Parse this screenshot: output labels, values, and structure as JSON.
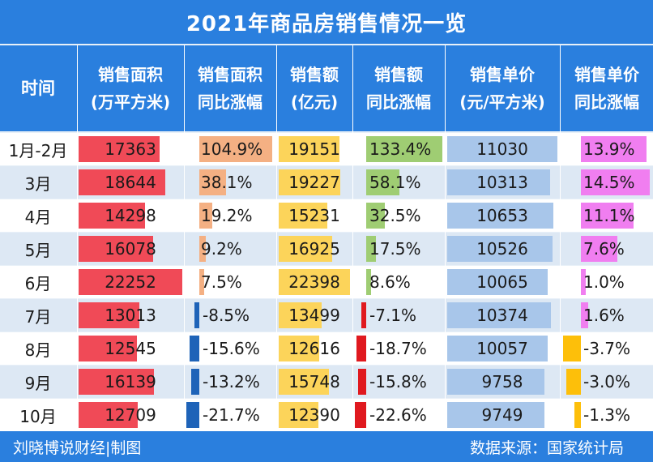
{
  "title": "2021年商品房销售情况一览",
  "headers": {
    "time": "时间",
    "area_1": "销售面积",
    "area_2": "(万平方米)",
    "area_yoy_1": "销售面积",
    "area_yoy_2": "同比涨幅",
    "amount_1": "销售额",
    "amount_2": "(亿元)",
    "amount_yoy_1": "销售额",
    "amount_yoy_2": "同比涨幅",
    "price_1": "销售单价",
    "price_2": "(元/平方米)",
    "price_yoy_1": "销售单价",
    "price_yoy_2": "同比涨幅"
  },
  "footer": {
    "left": "刘晓博说财经|制图",
    "right": "数据来源：国家统计局"
  },
  "colors": {
    "header_bg": "#2a7fde",
    "area_bar": "#f04a57",
    "area_yoy_pos": "#f4b083",
    "amount_bar": "#fcd45a",
    "amount_yoy_pos": "#9fcd73",
    "price_bar": "#a8c6ea",
    "price_yoy_pos": "#f07ef0",
    "negative_bar": "#1e63b8",
    "amount_yoy_neg": "#e0191f",
    "price_yoy_neg": "#fdbf0a"
  },
  "chart_data": {
    "type": "table",
    "title": "2021年商品房销售情况一览",
    "columns": [
      "时间",
      "销售面积(万平方米)",
      "销售面积同比涨幅",
      "销售额(亿元)",
      "销售额同比涨幅",
      "销售单价(元/平方米)",
      "销售单价同比涨幅"
    ],
    "rows": [
      {
        "month": "1月-2月",
        "area": 17363,
        "area_yoy_label": "104.9%",
        "area_yoy": 104.9,
        "amount": 19151,
        "amount_yoy_label": "133.4%",
        "amount_yoy": 133.4,
        "price": 11030,
        "price_yoy_label": "13.9%",
        "price_yoy": 13.9
      },
      {
        "month": "3月",
        "area": 18644,
        "area_yoy_label": "38.1%",
        "area_yoy": 38.1,
        "amount": 19227,
        "amount_yoy_label": "58.1%",
        "amount_yoy": 58.1,
        "price": 10313,
        "price_yoy_label": "14.5%",
        "price_yoy": 14.5
      },
      {
        "month": "4月",
        "area": 14298,
        "area_yoy_label": "19.2%",
        "area_yoy": 19.2,
        "amount": 15231,
        "amount_yoy_label": "32.5%",
        "amount_yoy": 32.5,
        "price": 10653,
        "price_yoy_label": "11.1%",
        "price_yoy": 11.1
      },
      {
        "month": "5月",
        "area": 16078,
        "area_yoy_label": "9.2%",
        "area_yoy": 9.2,
        "amount": 16925,
        "amount_yoy_label": "17.5%",
        "amount_yoy": 17.5,
        "price": 10526,
        "price_yoy_label": "7.6%",
        "price_yoy": 7.6
      },
      {
        "month": "6月",
        "area": 22252,
        "area_yoy_label": "7.5%",
        "area_yoy": 7.5,
        "amount": 22398,
        "amount_yoy_label": "8.6%",
        "amount_yoy": 8.6,
        "price": 10065,
        "price_yoy_label": "1.0%",
        "price_yoy": 1.0
      },
      {
        "month": "7月",
        "area": 13013,
        "area_yoy_label": "-8.5%",
        "area_yoy": -8.5,
        "amount": 13499,
        "amount_yoy_label": "-7.1%",
        "amount_yoy": -7.1,
        "price": 10374,
        "price_yoy_label": "1.6%",
        "price_yoy": 1.6
      },
      {
        "month": "8月",
        "area": 12545,
        "area_yoy_label": "-15.6%",
        "area_yoy": -15.6,
        "amount": 12616,
        "amount_yoy_label": "-18.7%",
        "amount_yoy": -18.7,
        "price": 10057,
        "price_yoy_label": "-3.7%",
        "price_yoy": -3.7
      },
      {
        "month": "9月",
        "area": 16139,
        "area_yoy_label": "-13.2%",
        "area_yoy": -13.2,
        "amount": 15748,
        "amount_yoy_label": "-15.8%",
        "amount_yoy": -15.8,
        "price": 9758,
        "price_yoy_label": "-3.0%",
        "price_yoy": -3.0
      },
      {
        "month": "10月",
        "area": 12709,
        "area_yoy_label": "-21.7%",
        "area_yoy": -21.7,
        "amount": 12390,
        "amount_yoy_label": "-22.6%",
        "amount_yoy": -22.6,
        "price": 9749,
        "price_yoy_label": "-1.3%",
        "price_yoy": -1.3
      }
    ]
  }
}
